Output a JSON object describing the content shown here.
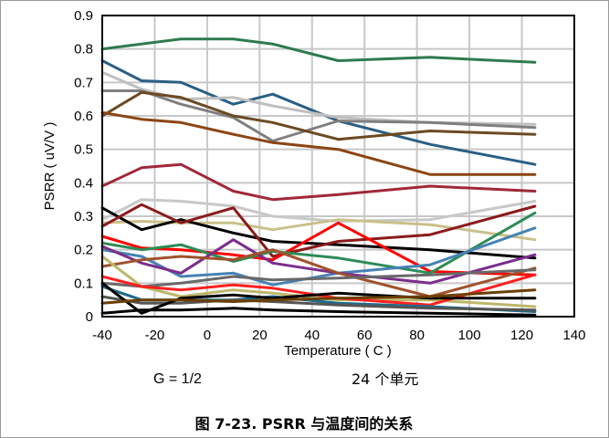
{
  "chart_data": {
    "type": "line",
    "xlabel": "Temperature ( C )",
    "ylabel": "PSRR ( uV/V )",
    "xlim": [
      -40,
      140
    ],
    "ylim": [
      0,
      0.9
    ],
    "x_ticks": [
      "-40",
      "-20",
      "0",
      "20",
      "40",
      "60",
      "80",
      "100",
      "120",
      "140"
    ],
    "y_ticks": [
      "0",
      "0.1",
      "0.2",
      "0.3",
      "0.4",
      "0.5",
      "0.6",
      "0.7",
      "0.8",
      "0.9"
    ],
    "grid": true,
    "annotations": {
      "gain": "G = 1/2",
      "units": "24 个单元"
    },
    "caption": "图 7-23. PSRR 与温度间的关系",
    "series": [
      {
        "color": "#2e7a4e",
        "x": [
          -40,
          -10,
          10,
          25,
          50,
          85,
          125
        ],
        "y": [
          0.8,
          0.83,
          0.83,
          0.815,
          0.765,
          0.775,
          0.76
        ]
      },
      {
        "color": "#2a5f84",
        "x": [
          -40,
          -25,
          -10,
          10,
          25,
          50,
          85,
          125
        ],
        "y": [
          0.765,
          0.705,
          0.7,
          0.635,
          0.665,
          0.585,
          0.515,
          0.455
        ]
      },
      {
        "color": "#bfbfbf",
        "x": [
          -40,
          -25,
          -10,
          10,
          25,
          50,
          85,
          125
        ],
        "y": [
          0.73,
          0.68,
          0.65,
          0.655,
          0.63,
          0.595,
          0.58,
          0.575
        ]
      },
      {
        "color": "#7f7f7f",
        "x": [
          -40,
          -25,
          -10,
          10,
          25,
          50,
          85,
          125
        ],
        "y": [
          0.675,
          0.675,
          0.635,
          0.595,
          0.525,
          0.585,
          0.58,
          0.565
        ]
      },
      {
        "color": "#6b4a22",
        "x": [
          -40,
          -25,
          -10,
          10,
          25,
          50,
          85,
          125
        ],
        "y": [
          0.6,
          0.67,
          0.655,
          0.6,
          0.58,
          0.53,
          0.555,
          0.545
        ]
      },
      {
        "color": "#8b4513",
        "x": [
          -40,
          -25,
          -10,
          10,
          25,
          50,
          85,
          125
        ],
        "y": [
          0.61,
          0.59,
          0.58,
          0.545,
          0.52,
          0.5,
          0.425,
          0.425
        ]
      },
      {
        "color": "#a0283a",
        "x": [
          -40,
          -25,
          -10,
          10,
          25,
          50,
          85,
          125
        ],
        "y": [
          0.39,
          0.445,
          0.455,
          0.375,
          0.35,
          0.365,
          0.39,
          0.375
        ]
      },
      {
        "color": "#c8c8c8",
        "x": [
          -40,
          -25,
          -10,
          10,
          25,
          50,
          85,
          125
        ],
        "y": [
          0.29,
          0.35,
          0.345,
          0.33,
          0.3,
          0.285,
          0.29,
          0.345
        ]
      },
      {
        "color": "#c9c08a",
        "x": [
          -40,
          -25,
          -10,
          10,
          25,
          50,
          85,
          125
        ],
        "y": [
          0.28,
          0.285,
          0.28,
          0.28,
          0.26,
          0.29,
          0.275,
          0.23
        ]
      },
      {
        "color": "#000000",
        "x": [
          -40,
          -25,
          -10,
          10,
          25,
          50,
          85,
          125
        ],
        "y": [
          0.325,
          0.26,
          0.29,
          0.25,
          0.225,
          0.215,
          0.2,
          0.175
        ]
      },
      {
        "color": "#8b1a1a",
        "x": [
          -40,
          -25,
          -10,
          10,
          25,
          50,
          85,
          125
        ],
        "y": [
          0.27,
          0.335,
          0.28,
          0.325,
          0.18,
          0.225,
          0.245,
          0.33
        ]
      },
      {
        "color": "#ff0000",
        "x": [
          -40,
          -25,
          -10,
          10,
          25,
          50,
          85,
          125
        ],
        "y": [
          0.24,
          0.205,
          0.2,
          0.185,
          0.17,
          0.28,
          0.135,
          0.125
        ]
      },
      {
        "color": "#2e8b57",
        "x": [
          -40,
          -25,
          -10,
          10,
          25,
          50,
          85,
          125
        ],
        "y": [
          0.22,
          0.2,
          0.215,
          0.165,
          0.195,
          0.175,
          0.13,
          0.31
        ]
      },
      {
        "color": "#4682b4",
        "x": [
          -40,
          -25,
          -10,
          10,
          25,
          50,
          85,
          125
        ],
        "y": [
          0.2,
          0.18,
          0.12,
          0.13,
          0.095,
          0.13,
          0.155,
          0.265
        ]
      },
      {
        "color": "#7b2d8b",
        "x": [
          -40,
          -25,
          -10,
          10,
          25,
          50,
          85,
          125
        ],
        "y": [
          0.21,
          0.16,
          0.13,
          0.23,
          0.16,
          0.13,
          0.1,
          0.185
        ]
      },
      {
        "color": "#a0522d",
        "x": [
          -40,
          -25,
          -10,
          10,
          25,
          50,
          85,
          125
        ],
        "y": [
          0.15,
          0.17,
          0.18,
          0.17,
          0.2,
          0.13,
          0.06,
          0.145
        ]
      },
      {
        "color": "#696969",
        "x": [
          -40,
          -25,
          -10,
          10,
          25,
          50,
          85,
          125
        ],
        "y": [
          0.1,
          0.09,
          0.1,
          0.12,
          0.11,
          0.115,
          0.125,
          0.14
        ]
      },
      {
        "color": "#bdb76b",
        "x": [
          -40,
          -25,
          -10,
          10,
          25,
          50,
          85,
          125
        ],
        "y": [
          0.18,
          0.09,
          0.06,
          0.08,
          0.07,
          0.05,
          0.05,
          0.03
        ]
      },
      {
        "color": "#ff2020",
        "x": [
          -40,
          -25,
          -10,
          10,
          25,
          50,
          85,
          125
        ],
        "y": [
          0.12,
          0.09,
          0.08,
          0.095,
          0.085,
          0.055,
          0.035,
          0.125
        ]
      },
      {
        "color": "#1e6a8c",
        "x": [
          -40,
          -25,
          -10,
          10,
          25,
          50,
          85,
          125
        ],
        "y": [
          0.09,
          0.05,
          0.05,
          0.05,
          0.06,
          0.04,
          0.03,
          0.015
        ]
      },
      {
        "color": "#555555",
        "x": [
          -40,
          -25,
          -10,
          10,
          25,
          50,
          85,
          125
        ],
        "y": [
          0.06,
          0.04,
          0.04,
          0.05,
          0.045,
          0.035,
          0.025,
          0.02
        ]
      },
      {
        "color": "#000000",
        "x": [
          -40,
          -25,
          -10,
          10,
          25,
          50,
          85,
          125
        ],
        "y": [
          0.1,
          0.01,
          0.055,
          0.065,
          0.055,
          0.07,
          0.055,
          0.055
        ]
      },
      {
        "color": "#000000",
        "x": [
          -40,
          -25,
          -10,
          10,
          25,
          50,
          85,
          125
        ],
        "y": [
          0.01,
          0.02,
          0.02,
          0.025,
          0.02,
          0.015,
          0.01,
          0.005
        ]
      },
      {
        "color": "#6b3e00",
        "x": [
          -40,
          -25,
          -10,
          10,
          25,
          50,
          85,
          125
        ],
        "y": [
          0.04,
          0.05,
          0.05,
          0.045,
          0.05,
          0.055,
          0.06,
          0.08
        ]
      }
    ]
  }
}
